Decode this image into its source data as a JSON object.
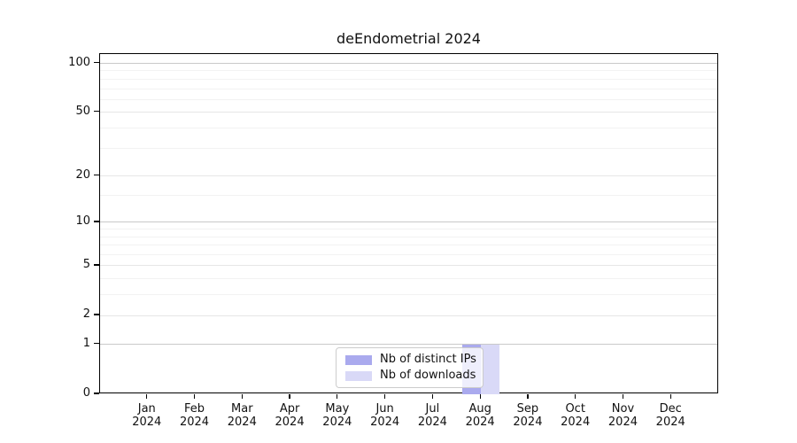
{
  "chart_data": {
    "type": "bar",
    "title": "deEndometrial 2024",
    "categories": [
      "Jan",
      "Feb",
      "Mar",
      "Apr",
      "May",
      "Jun",
      "Jul",
      "Aug",
      "Sep",
      "Oct",
      "Nov",
      "Dec"
    ],
    "x_year": "2024",
    "series": [
      {
        "name": "Nb of distinct IPs",
        "color": "#aaaaee",
        "values": [
          0,
          0,
          0,
          0,
          0,
          0,
          0,
          1,
          0,
          0,
          0,
          0
        ]
      },
      {
        "name": "Nb of downloads",
        "color": "#d9d9f7",
        "values": [
          0,
          0,
          0,
          0,
          0,
          0,
          0,
          1,
          0,
          0,
          0,
          0
        ]
      }
    ],
    "y_axis": {
      "scale": "log1p",
      "ticks": [
        0,
        1,
        2,
        5,
        10,
        20,
        50,
        100
      ],
      "minor_ticks": [
        3,
        4,
        6,
        7,
        8,
        9,
        15,
        30,
        40,
        60,
        70,
        80,
        90
      ],
      "top_value": 114,
      "ylim": [
        0,
        114
      ]
    },
    "grid": "horizontal",
    "legend_position": "inside-bottom-center",
    "colors": {
      "axis": "#000000",
      "legend_border": "#cccccc"
    }
  }
}
